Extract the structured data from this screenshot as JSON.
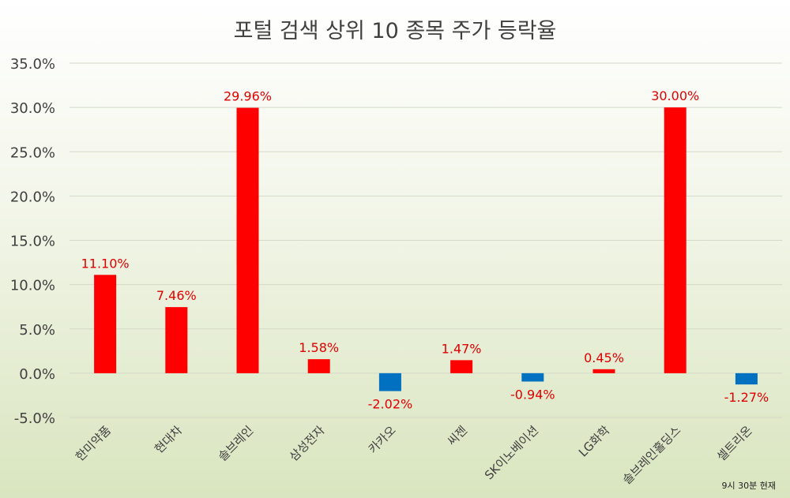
{
  "chart_data": {
    "type": "bar",
    "title": "포털 검색 상위 10 종목 주가 등락율",
    "categories": [
      "한미약품",
      "현대차",
      "솔브레인",
      "삼성전자",
      "카카오",
      "씨젠",
      "SK이노베이션",
      "LG화학",
      "솔브레인홀딩스",
      "셀트리온"
    ],
    "values": [
      11.1,
      7.46,
      29.96,
      1.58,
      -2.02,
      1.47,
      -0.94,
      0.45,
      30.0,
      -1.27
    ],
    "data_labels": [
      "11.10%",
      "7.46%",
      "29.96%",
      "1.58%",
      "-2.02%",
      "1.47%",
      "-0.94%",
      "0.45%",
      "30.00%",
      "-1.27%"
    ],
    "ylim": [
      -5,
      35
    ],
    "y_ticks": [
      35,
      30,
      25,
      20,
      15,
      10,
      5,
      0,
      -5
    ],
    "y_tick_labels": [
      "35.0%",
      "30.0%",
      "25.0%",
      "20.0%",
      "15.0%",
      "10.0%",
      "5.0%",
      "0.0%",
      "-5.0%"
    ],
    "xlabel": "",
    "ylabel": "",
    "grid": true,
    "colors": {
      "positive": "#ff0000",
      "negative": "#0070c0",
      "label_text": "#e00000"
    },
    "footnote": "9시 30분 현재"
  }
}
